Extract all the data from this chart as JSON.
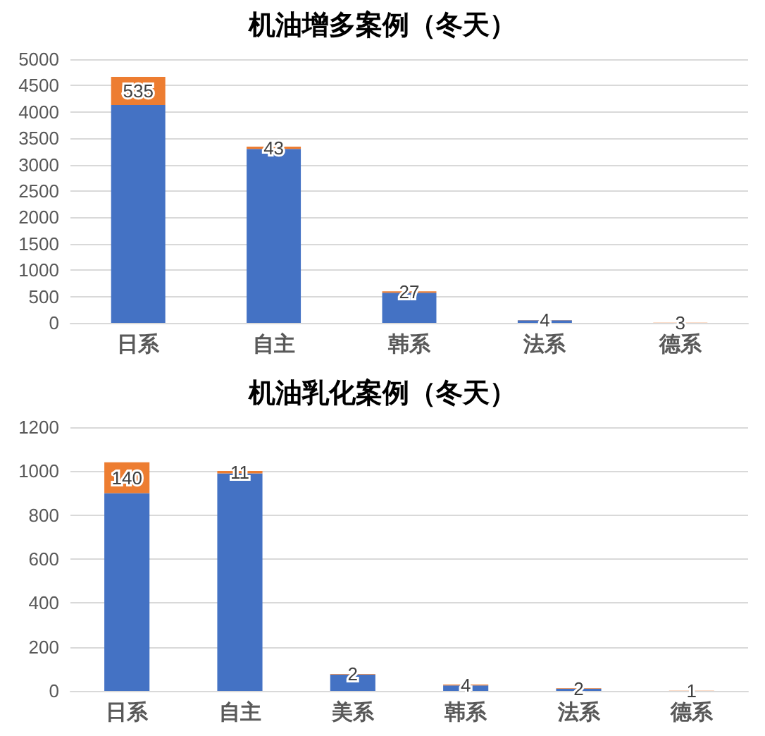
{
  "chart_data": [
    {
      "type": "bar",
      "title": "机油增多案例（冬天）",
      "categories": [
        "日系",
        "自主",
        "韩系",
        "法系",
        "德系"
      ],
      "stacked": true,
      "grid": "y",
      "ylim": [
        0,
        5000
      ],
      "yticks": [
        0,
        500,
        1000,
        1500,
        2000,
        2500,
        3000,
        3500,
        4000,
        4500,
        5000
      ],
      "series": [
        {
          "color": "#4472c4",
          "values": [
            4130,
            3300,
            570,
            50,
            0
          ]
        },
        {
          "color": "#ed7d31",
          "values": [
            535,
            43,
            27,
            4,
            3
          ],
          "value_labels": [
            "535",
            "43",
            "27",
            "4",
            "3"
          ]
        }
      ]
    },
    {
      "type": "bar",
      "title": "机油乳化案例（冬天）",
      "categories": [
        "日系",
        "自主",
        "美系",
        "韩系",
        "法系",
        "德系"
      ],
      "stacked": true,
      "grid": "y",
      "ylim": [
        0,
        1200
      ],
      "yticks": [
        0,
        200,
        400,
        600,
        800,
        1000,
        1200
      ],
      "series": [
        {
          "color": "#4472c4",
          "values": [
            900,
            990,
            75,
            25,
            10,
            0
          ]
        },
        {
          "color": "#ed7d31",
          "values": [
            140,
            11,
            2,
            4,
            2,
            1
          ],
          "value_labels": [
            "140",
            "11",
            "2",
            "4",
            "2",
            "1"
          ]
        }
      ]
    }
  ]
}
